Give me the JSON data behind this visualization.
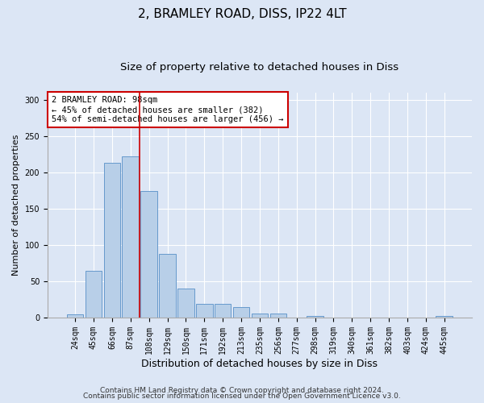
{
  "title": "2, BRAMLEY ROAD, DISS, IP22 4LT",
  "subtitle": "Size of property relative to detached houses in Diss",
  "xlabel": "Distribution of detached houses by size in Diss",
  "ylabel": "Number of detached properties",
  "categories": [
    "24sqm",
    "45sqm",
    "66sqm",
    "87sqm",
    "108sqm",
    "129sqm",
    "150sqm",
    "171sqm",
    "192sqm",
    "213sqm",
    "235sqm",
    "256sqm",
    "277sqm",
    "298sqm",
    "319sqm",
    "340sqm",
    "361sqm",
    "382sqm",
    "403sqm",
    "424sqm",
    "445sqm"
  ],
  "values": [
    4,
    65,
    213,
    222,
    175,
    88,
    40,
    19,
    19,
    14,
    5,
    5,
    0,
    2,
    0,
    0,
    0,
    0,
    0,
    0,
    2
  ],
  "bar_color": "#b8cfe8",
  "bar_edge_color": "#6699cc",
  "vline_x": 4.0,
  "vline_color": "#cc0000",
  "ylim": [
    0,
    310
  ],
  "yticks": [
    0,
    50,
    100,
    150,
    200,
    250,
    300
  ],
  "annotation_box_text": "2 BRAMLEY ROAD: 98sqm\n← 45% of detached houses are smaller (382)\n54% of semi-detached houses are larger (456) →",
  "footer1": "Contains HM Land Registry data © Crown copyright and database right 2024.",
  "footer2": "Contains public sector information licensed under the Open Government Licence v3.0.",
  "bg_color": "#dce6f5",
  "plot_bg_color": "#dce6f5",
  "title_fontsize": 11,
  "subtitle_fontsize": 9.5,
  "xlabel_fontsize": 9,
  "ylabel_fontsize": 8,
  "tick_fontsize": 7,
  "annot_fontsize": 7.5,
  "footer_fontsize": 6.5
}
